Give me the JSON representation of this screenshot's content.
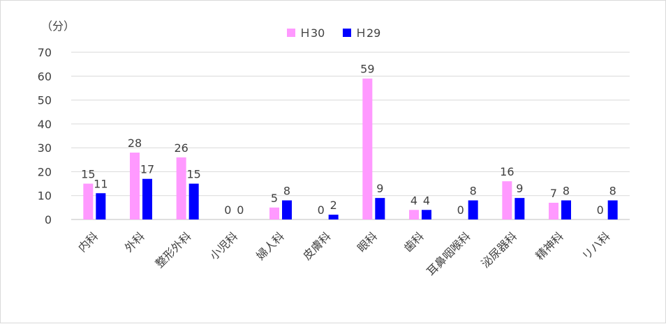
{
  "chart_data": {
    "type": "bar",
    "ylabel": "（分）",
    "ylim": [
      0,
      70
    ],
    "yticks": [
      0,
      10,
      20,
      30,
      40,
      50,
      60,
      70
    ],
    "grid": true,
    "legend_position": "top-center",
    "categories": [
      "内科",
      "外科",
      "整形外科",
      "小児科",
      "婦人科",
      "皮膚科",
      "眼科",
      "歯科",
      "耳鼻咽喉科",
      "泌尿器科",
      "精神科",
      "リハ科"
    ],
    "series": [
      {
        "name": "Ｈ30",
        "color": "#ff99ff",
        "values": [
          15,
          28,
          26,
          0,
          5,
          0,
          59,
          4,
          0,
          16,
          7,
          0
        ]
      },
      {
        "name": "Ｈ29",
        "color": "#0000ff",
        "values": [
          11,
          17,
          15,
          0,
          8,
          2,
          9,
          4,
          8,
          9,
          8,
          8
        ]
      }
    ],
    "data_labels": [
      [
        "15",
        "28",
        "26",
        "0",
        "5",
        "0",
        "59",
        "4",
        "0",
        "16",
        "7",
        "0"
      ],
      [
        "11",
        "17",
        "15",
        "0",
        "8",
        "2",
        "9",
        "4",
        "8",
        "9",
        "8",
        "8"
      ]
    ]
  }
}
